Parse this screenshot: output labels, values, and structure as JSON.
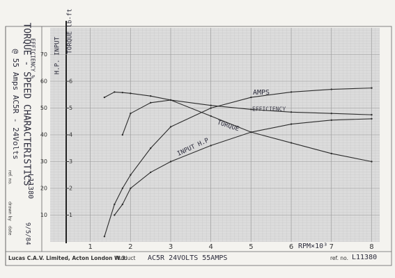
{
  "chart_data": {
    "type": "line",
    "title": "TORQUE - SPEED CHARACTERISTICS",
    "subtitle": "@ 55 Amps AC5R - 24Volts",
    "x_label": "RPM×10³",
    "y_label": "EFFICIENCY %",
    "y2_labels": [
      "H.P. INPUT",
      "TORQUE lb-ft"
    ],
    "x": [
      1.35,
      1.6,
      1.8,
      2,
      2.5,
      3,
      4,
      5,
      6,
      7,
      8
    ],
    "xlim": [
      0,
      8.2
    ],
    "xticks": [
      1,
      2,
      3,
      4,
      5,
      6,
      7,
      8
    ],
    "ylim": [
      0,
      80
    ],
    "yticks": [
      10,
      20,
      30,
      40,
      50,
      60,
      70
    ],
    "y2lim": [
      0,
      8
    ],
    "y2ticks": [
      1,
      2,
      3,
      4,
      5,
      6
    ],
    "grid": true,
    "series": [
      {
        "name": "AMPS",
        "color": "#2b2b2b",
        "values": [
          2,
          14,
          20,
          25,
          35,
          43,
          50,
          54,
          56,
          57,
          57.5
        ]
      },
      {
        "name": "EFFICIENCY",
        "color": "#2b2b2b",
        "values": [
          null,
          null,
          40,
          48,
          52,
          53,
          51,
          49.5,
          48.5,
          48,
          47.5
        ]
      },
      {
        "name": "TORQUE",
        "color": "#2b2b2b",
        "values": [
          54,
          56,
          55.8,
          55.5,
          54.5,
          53,
          47,
          41,
          37,
          33,
          30
        ]
      },
      {
        "name": "INPUT H.P",
        "color": "#2b2b2b",
        "values": [
          null,
          10,
          14,
          20,
          26,
          30,
          36,
          41,
          44,
          45.5,
          46
        ]
      }
    ],
    "footer": {
      "company": "Lucas C.A.V. Limited, Acton London W.3.",
      "product_label": "Product",
      "product": "AC5R 24VOLTS 55AMPS",
      "ref_label": "ref. no.",
      "ref": "L11380"
    },
    "side_box": {
      "ref_label": "ref. no.",
      "ref": "L11380",
      "drawn_label": "drawn by",
      "date_label": "date",
      "date": "9/5/84"
    }
  }
}
